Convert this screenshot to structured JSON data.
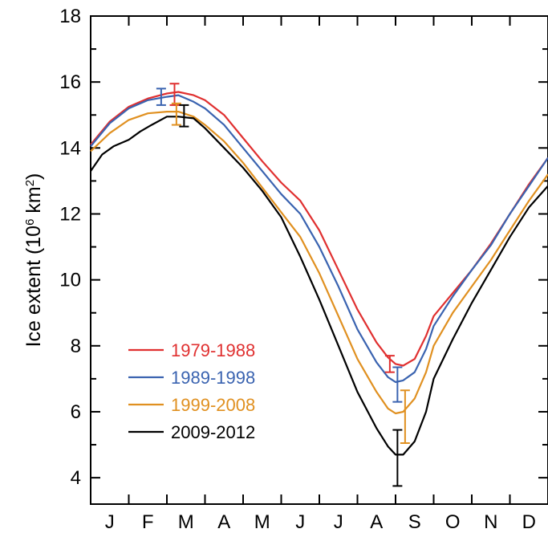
{
  "chart_data": {
    "type": "line",
    "title": "",
    "xlabel": "",
    "ylabel": {
      "prefix": "Ice extent (10",
      "sup": "6",
      "unit": " km",
      "sup2": "2",
      "suffix": ")"
    },
    "ylim": [
      3.2,
      18
    ],
    "yticks": [
      4,
      6,
      8,
      10,
      12,
      14,
      16,
      18
    ],
    "xlim": [
      0,
      12
    ],
    "months": [
      "J",
      "F",
      "M",
      "A",
      "M",
      "J",
      "J",
      "A",
      "S",
      "O",
      "N",
      "D"
    ],
    "legend_placement": "lower-left",
    "series": [
      {
        "name": "1979-1988",
        "color": "#e03030",
        "x": [
          0,
          0.5,
          1.0,
          1.5,
          2.0,
          2.3,
          2.7,
          3.0,
          3.5,
          4.0,
          4.5,
          5.0,
          5.5,
          6.0,
          6.5,
          7.0,
          7.5,
          7.8,
          8.0,
          8.2,
          8.5,
          8.8,
          9.0,
          9.5,
          10.0,
          10.5,
          11.0,
          11.5,
          12.0
        ],
        "y": [
          14.1,
          14.8,
          15.25,
          15.5,
          15.65,
          15.7,
          15.6,
          15.45,
          15.0,
          14.3,
          13.6,
          12.95,
          12.4,
          11.5,
          10.3,
          9.1,
          8.1,
          7.65,
          7.45,
          7.4,
          7.6,
          8.3,
          8.9,
          9.6,
          10.3,
          11.1,
          12.0,
          12.9,
          13.7
        ]
      },
      {
        "name": "1989-1998",
        "color": "#3a63b0",
        "x": [
          0,
          0.5,
          1.0,
          1.5,
          2.0,
          2.3,
          2.7,
          3.0,
          3.5,
          4.0,
          4.5,
          5.0,
          5.5,
          6.0,
          6.5,
          7.0,
          7.5,
          7.8,
          8.0,
          8.2,
          8.5,
          8.8,
          9.0,
          9.5,
          10.0,
          10.5,
          11.0,
          11.5,
          12.0
        ],
        "y": [
          14.05,
          14.75,
          15.2,
          15.45,
          15.55,
          15.6,
          15.4,
          15.2,
          14.7,
          14.0,
          13.3,
          12.6,
          12.0,
          11.0,
          9.8,
          8.5,
          7.5,
          7.05,
          6.9,
          6.95,
          7.2,
          7.9,
          8.6,
          9.5,
          10.3,
          11.05,
          12.0,
          12.85,
          13.7
        ]
      },
      {
        "name": "1999-2008",
        "color": "#e09020",
        "x": [
          0,
          0.5,
          1.0,
          1.5,
          2.0,
          2.3,
          2.7,
          3.0,
          3.5,
          4.0,
          4.5,
          5.0,
          5.5,
          6.0,
          6.5,
          7.0,
          7.5,
          7.8,
          8.0,
          8.2,
          8.5,
          8.8,
          9.0,
          9.5,
          10.0,
          10.5,
          11.0,
          11.5,
          12.0
        ],
        "y": [
          13.9,
          14.45,
          14.85,
          15.05,
          15.1,
          15.1,
          14.95,
          14.7,
          14.2,
          13.55,
          12.8,
          12.05,
          11.3,
          10.2,
          8.9,
          7.6,
          6.6,
          6.1,
          5.95,
          6.0,
          6.4,
          7.2,
          8.0,
          9.0,
          9.8,
          10.6,
          11.5,
          12.4,
          13.2
        ]
      },
      {
        "name": "2009-2012",
        "color": "#000000",
        "x": [
          0,
          0.3,
          0.6,
          1.0,
          1.3,
          1.6,
          2.0,
          2.3,
          2.7,
          3.0,
          3.5,
          4.0,
          4.5,
          5.0,
          5.5,
          6.0,
          6.5,
          7.0,
          7.5,
          7.8,
          8.0,
          8.2,
          8.5,
          8.8,
          9.0,
          9.5,
          10.0,
          10.5,
          11.0,
          11.5,
          12.0
        ],
        "y": [
          13.3,
          13.8,
          14.05,
          14.25,
          14.5,
          14.7,
          14.95,
          14.95,
          14.9,
          14.6,
          14.0,
          13.4,
          12.7,
          11.9,
          10.7,
          9.4,
          8.0,
          6.6,
          5.5,
          4.95,
          4.7,
          4.7,
          5.1,
          6.0,
          7.0,
          8.2,
          9.3,
          10.3,
          11.3,
          12.2,
          12.85
        ]
      }
    ],
    "error_bars": [
      {
        "series": "1979-1988",
        "x": 2.2,
        "low": 15.3,
        "high": 15.95
      },
      {
        "series": "1989-1998",
        "x": 1.85,
        "low": 15.3,
        "high": 15.8
      },
      {
        "series": "1999-2008",
        "x": 2.25,
        "low": 14.7,
        "high": 15.35
      },
      {
        "series": "2009-2012",
        "x": 2.45,
        "low": 14.65,
        "high": 15.3
      },
      {
        "series": "1979-1988",
        "x": 7.85,
        "low": 7.2,
        "high": 7.7
      },
      {
        "series": "1989-1998",
        "x": 8.05,
        "low": 6.3,
        "high": 7.35
      },
      {
        "series": "1999-2008",
        "x": 8.25,
        "low": 5.05,
        "high": 6.65
      },
      {
        "series": "2009-2012",
        "x": 8.05,
        "low": 3.75,
        "high": 5.45
      }
    ]
  }
}
